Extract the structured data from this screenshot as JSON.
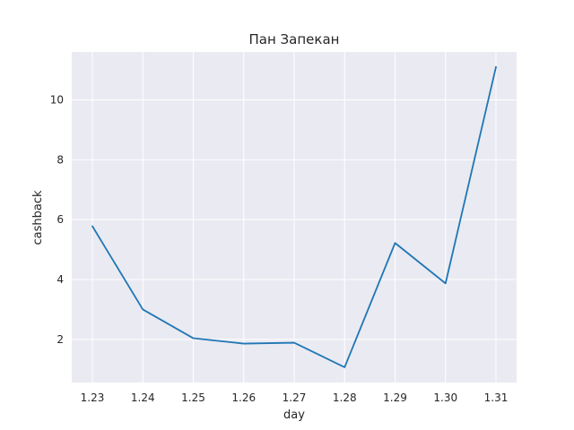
{
  "chart_data": {
    "type": "line",
    "title": "Пан Запекан",
    "xlabel": "day",
    "ylabel": "cashback",
    "x": [
      "1.23",
      "1.24",
      "1.25",
      "1.26",
      "1.27",
      "1.28",
      "1.29",
      "1.30",
      "1.31"
    ],
    "series": [
      {
        "values": [
          5.78,
          3.0,
          2.04,
          1.86,
          1.89,
          1.07,
          5.22,
          3.87,
          11.1
        ]
      }
    ],
    "yticks": [
      2,
      4,
      6,
      8,
      10
    ],
    "ylim": [
      0.56,
      11.6
    ],
    "grid": true,
    "colors": {
      "background": "#eaeaf2",
      "grid": "#ffffff",
      "line": "#1f77b4"
    }
  }
}
